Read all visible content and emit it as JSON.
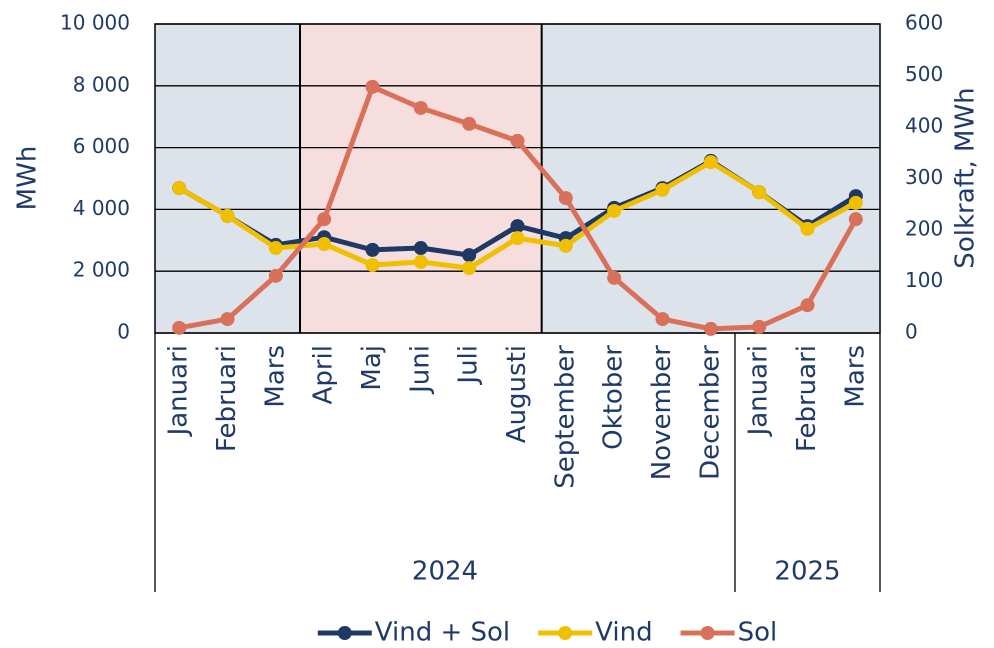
{
  "chart_data": {
    "type": "line",
    "groups": [
      {
        "label": "2024",
        "categories": [
          "Januari",
          "Februari",
          "Mars",
          "April",
          "Maj",
          "Juni",
          "Juli",
          "Augusti",
          "September",
          "Oktober",
          "November",
          "December"
        ]
      },
      {
        "label": "2025",
        "categories": [
          "Januari",
          "Februari",
          "Mars"
        ]
      }
    ],
    "series": [
      {
        "name": "Vind + Sol",
        "color": "#1f3864",
        "values": [
          4690,
          3790,
          2850,
          3100,
          2690,
          2750,
          2520,
          3460,
          3070,
          4050,
          4690,
          5570,
          4560,
          3460,
          4430
        ]
      },
      {
        "name": "Vind",
        "color": "#f0c000",
        "values": [
          4690,
          3790,
          2750,
          2880,
          2200,
          2300,
          2100,
          3070,
          2820,
          3950,
          4630,
          5530,
          4560,
          3370,
          4210
        ]
      },
      {
        "name": "Sol",
        "color": "#d9705a",
        "axis": "y2",
        "values": [
          10,
          27,
          111,
          221,
          478,
          437,
          406,
          373,
          262,
          107,
          27,
          8,
          12,
          54,
          221
        ]
      }
    ],
    "ylabel": "MWh",
    "y2label": "Solkraft, MWh",
    "ylim": [
      0,
      10000
    ],
    "yticks": [
      0,
      {
        "value": 2000,
        "label": "2 000"
      },
      {
        "value": 4000,
        "label": "4 000"
      },
      {
        "value": 6000,
        "label": "6 000"
      },
      {
        "value": 8000,
        "label": "8 000"
      },
      {
        "value": 10000,
        "label": "10 000"
      }
    ],
    "y2lim": [
      0,
      600
    ],
    "y2ticks": [
      0,
      100,
      200,
      300,
      400,
      500,
      600
    ],
    "grid": true,
    "legend": "bottom"
  }
}
